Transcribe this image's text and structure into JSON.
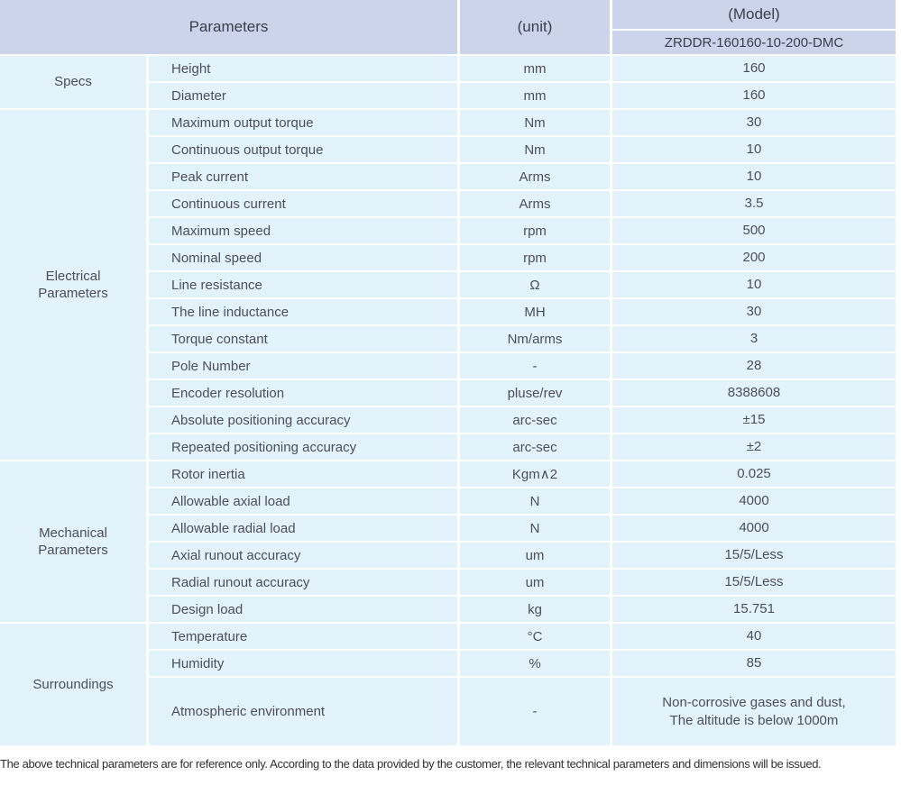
{
  "header": {
    "parameters_label": "Parameters",
    "unit_label": "(unit)",
    "model_label": "(Model)",
    "model_value": "ZRDDR-160160-10-200-DMC"
  },
  "sections": [
    {
      "key": "specs",
      "label": "Specs",
      "rows": [
        {
          "param": "Height",
          "unit": "mm",
          "value": "160"
        },
        {
          "param": "Diameter",
          "unit": "mm",
          "value": "160"
        }
      ]
    },
    {
      "key": "electrical-parameters",
      "label": "Electrical\nParameters",
      "rows": [
        {
          "param": "Maximum output torque",
          "unit": "Nm",
          "value": "30"
        },
        {
          "param": "Continuous output torque",
          "unit": "Nm",
          "value": "10"
        },
        {
          "param": "Peak current",
          "unit": "Arms",
          "value": "10"
        },
        {
          "param": "Continuous current",
          "unit": "Arms",
          "value": "3.5"
        },
        {
          "param": "Maximum speed",
          "unit": "rpm",
          "value": "500"
        },
        {
          "param": "Nominal speed",
          "unit": "rpm",
          "value": "200"
        },
        {
          "param": "Line resistance",
          "unit": "Ω",
          "value": "10"
        },
        {
          "param": "The line inductance",
          "unit": "MH",
          "value": "30"
        },
        {
          "param": "Torque constant",
          "unit": "Nm/arms",
          "value": "3"
        },
        {
          "param": "Pole Number",
          "unit": "-",
          "value": "28"
        },
        {
          "param": "Encoder resolution",
          "unit": "pluse/rev",
          "value": "8388608"
        },
        {
          "param": "Absolute positioning accuracy",
          "unit": "arc-sec",
          "value": "±15"
        },
        {
          "param": "Repeated positioning accuracy",
          "unit": "arc-sec",
          "value": "±2"
        }
      ]
    },
    {
      "key": "mechanical-parameters",
      "label": "Mechanical\nParameters",
      "rows": [
        {
          "param": "Rotor inertia",
          "unit": "Kgm∧2",
          "value": "0.025"
        },
        {
          "param": "Allowable axial load",
          "unit": "N",
          "value": "4000"
        },
        {
          "param": "Allowable radial load",
          "unit": "N",
          "value": "4000"
        },
        {
          "param": "Axial runout accuracy",
          "unit": "um",
          "value": "15/5/Less"
        },
        {
          "param": "Radial runout accuracy",
          "unit": "um",
          "value": "15/5/Less"
        },
        {
          "param": "Design load",
          "unit": "kg",
          "value": "15.751"
        }
      ]
    },
    {
      "key": "surroundings",
      "label": "Surroundings",
      "rows": [
        {
          "param": "Temperature",
          "unit": "°C",
          "value": "40"
        },
        {
          "param": "Humidity",
          "unit": "%",
          "value": "85"
        },
        {
          "param": "Atmospheric environment",
          "unit": "-",
          "value": "Non-corrosive gases and dust,\nThe altitude is below 1000m"
        }
      ]
    }
  ],
  "footer": {
    "note": "The above technical parameters are for reference only. According to the data provided by the customer, the relevant technical parameters and dimensions will be issued."
  },
  "colors": {
    "header_bg": "#ccd4ec",
    "cell_bg": "#e2f3fb",
    "text": "#4c4f58",
    "header_text": "#3b3f4b"
  }
}
